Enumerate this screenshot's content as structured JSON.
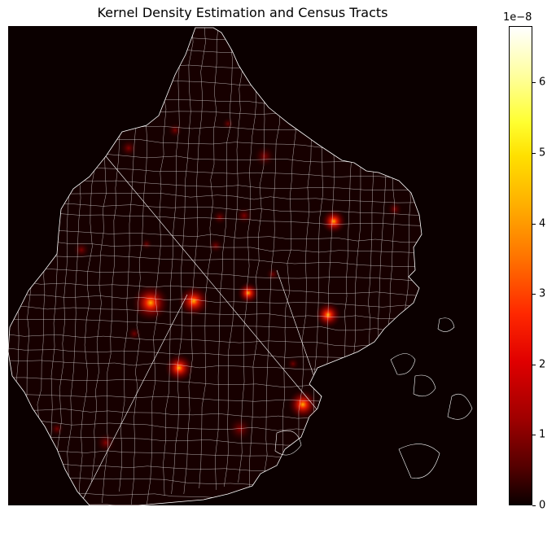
{
  "chart_data": {
    "type": "heatmap",
    "title": "Kernel Density Estimation and Census Tracts",
    "xlabel": "",
    "ylabel": "",
    "colormap": "hot",
    "colorbar": {
      "ticks": [
        0,
        1,
        2,
        3,
        4,
        5,
        6
      ],
      "tick_labels": [
        "0",
        "1",
        "2",
        "3",
        "4",
        "5",
        "6"
      ],
      "range": [
        0,
        6.8
      ],
      "exponent_label": "1e−8"
    },
    "background_color": "#0b0000",
    "boundary_color": "#ffffff",
    "hotspot_values": [
      3.0,
      2.8,
      3.2,
      2.6,
      2.7,
      2.4,
      2.2,
      1.8,
      1.7,
      1.6,
      1.6,
      1.5,
      1.4,
      1.5,
      1.4,
      1.3,
      1.2,
      1.3,
      1.1,
      1.0,
      1.2,
      1.0,
      1.1
    ]
  }
}
